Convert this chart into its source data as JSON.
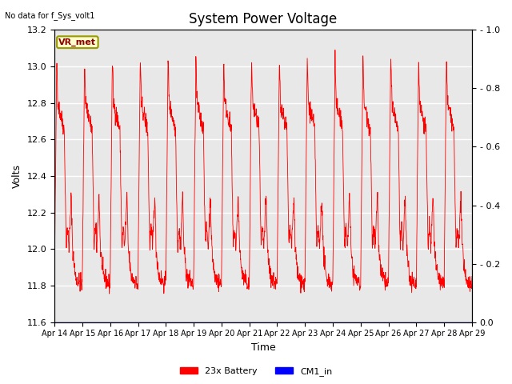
{
  "title": "System Power Voltage",
  "subtitle": "No data for f_Sys_volt1",
  "ylabel_left": "Volts",
  "xlabel": "Time",
  "ylim_left": [
    11.6,
    13.2
  ],
  "ylim_right": [
    0.0,
    1.0
  ],
  "yticks_left": [
    11.6,
    11.8,
    12.0,
    12.2,
    12.4,
    12.6,
    12.8,
    13.0,
    13.2
  ],
  "yticks_right": [
    0.0,
    0.2,
    0.4,
    0.6,
    0.8,
    1.0
  ],
  "xtick_labels": [
    "Apr 14",
    "Apr 15",
    "Apr 16",
    "Apr 17",
    "Apr 18",
    "Apr 19",
    "Apr 20",
    "Apr 21",
    "Apr 22",
    "Apr 23",
    "Apr 24",
    "Apr 25",
    "Apr 26",
    "Apr 27",
    "Apr 28",
    "Apr 29"
  ],
  "line_color_battery": "#FF0000",
  "line_color_cm1": "#0000FF",
  "legend_battery": "23x Battery",
  "legend_cm1": "CM1_in",
  "vr_met_label": "VR_met",
  "background_color": "#E8E8E8",
  "title_fontsize": 12,
  "axis_fontsize": 9,
  "tick_fontsize": 8
}
